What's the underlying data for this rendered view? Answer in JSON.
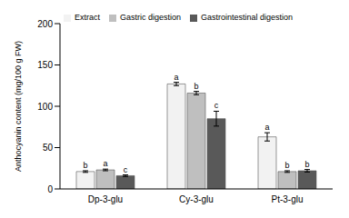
{
  "chart_data": {
    "type": "bar",
    "y_label": "Anthocyanin content (mg/100 g FW)",
    "categories": [
      "Dp-3-glu",
      "Cy-3-glu",
      "Pt-3-glu"
    ],
    "series": [
      {
        "name": "Extract",
        "color": "#f2f2f2",
        "values": [
          21,
          127,
          63
        ],
        "errors": [
          1,
          2,
          5
        ],
        "letters": [
          "b",
          "a",
          "a"
        ]
      },
      {
        "name": "Gastric digestion",
        "color": "#bfbfbf",
        "values": [
          23,
          116,
          21
        ],
        "errors": [
          1,
          2,
          1
        ],
        "letters": [
          "a",
          "b",
          "b"
        ]
      },
      {
        "name": "Gastrointestinal digestion",
        "color": "#595959",
        "values": [
          16,
          85,
          22
        ],
        "errors": [
          1,
          9,
          1.5
        ],
        "letters": [
          "c",
          "c",
          "b"
        ]
      }
    ],
    "ylim": [
      0,
      200
    ],
    "yticks": [
      0,
      50,
      100,
      150,
      200
    ],
    "legend": "top-left",
    "grid": false
  }
}
